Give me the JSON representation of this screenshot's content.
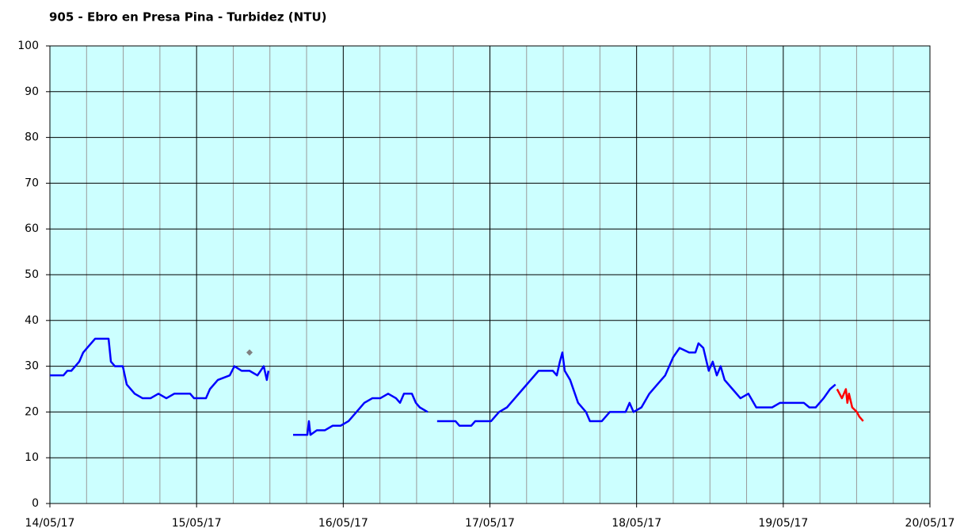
{
  "chart_data": {
    "type": "line",
    "title": "905 - Ebro en Presa Pina - Turbidez (NTU)",
    "xlim": [
      0,
      6
    ],
    "xticks": [
      {
        "value": 0,
        "label": "14/05/17"
      },
      {
        "value": 1,
        "label": "15/05/17"
      },
      {
        "value": 2,
        "label": "16/05/17"
      },
      {
        "value": 3,
        "label": "17/05/17"
      },
      {
        "value": 4,
        "label": "18/05/17"
      },
      {
        "value": 5,
        "label": "19/05/17"
      },
      {
        "value": 6,
        "label": "20/05/17"
      }
    ],
    "ylim": [
      0,
      100
    ],
    "yticks": [
      0,
      10,
      20,
      30,
      40,
      50,
      60,
      70,
      80,
      90,
      100
    ],
    "grid": true,
    "background": "#ccffff",
    "series": [
      {
        "color": "#0000ff",
        "x": [
          0,
          0.092,
          0.119,
          0.146,
          0.173,
          0.2,
          0.227,
          0.254,
          0.281,
          0.308,
          0.362,
          0.4,
          0.416,
          0.443,
          0.497,
          0.524,
          0.578,
          0.632,
          0.686,
          0.74,
          0.794,
          0.848,
          0.956,
          0.983,
          1.064,
          1.091,
          1.145,
          1.226,
          1.258,
          1.307,
          1.361,
          1.415,
          1.458,
          1.479,
          1.49,
          null,
          1.658,
          1.755,
          1.766,
          1.776,
          1.82,
          1.874,
          1.928,
          1.982,
          2.036,
          2.09,
          2.144,
          2.198,
          2.252,
          2.306,
          2.36,
          2.387,
          2.414,
          2.441,
          2.468,
          2.495,
          2.522,
          2.576,
          null,
          2.64,
          2.765,
          2.792,
          2.873,
          2.9,
          3.008,
          3.062,
          3.116,
          3.17,
          3.224,
          3.278,
          3.332,
          3.386,
          3.429,
          3.456,
          3.477,
          3.494,
          3.51,
          3.547,
          3.601,
          3.655,
          3.682,
          3.763,
          3.817,
          3.871,
          3.925,
          3.952,
          3.979,
          4.033,
          4.087,
          4.141,
          4.195,
          4.25,
          4.293,
          4.358,
          4.401,
          4.422,
          4.455,
          4.492,
          4.519,
          4.547,
          4.573,
          4.6,
          4.654,
          4.708,
          4.762,
          4.816,
          4.87,
          4.924,
          4.978,
          5.032,
          5.086,
          5.14,
          5.178,
          5.221,
          5.275,
          5.319,
          5.356
        ],
        "values": [
          28,
          28,
          29,
          29,
          30,
          31,
          33,
          34,
          35,
          36,
          36,
          36,
          31,
          30,
          30,
          26,
          24,
          23,
          23,
          24,
          23,
          24,
          24,
          23,
          23,
          25,
          27,
          28,
          30,
          29,
          29,
          28,
          30,
          27,
          29,
          null,
          15,
          15,
          18,
          15,
          16,
          16,
          17,
          17,
          18,
          20,
          22,
          23,
          23,
          24,
          23,
          22,
          24,
          24,
          24,
          22,
          21,
          20,
          null,
          18,
          18,
          17,
          17,
          18,
          18,
          20,
          21,
          23,
          25,
          27,
          29,
          29,
          29,
          28,
          31,
          33,
          29,
          27,
          22,
          20,
          18,
          18,
          20,
          20,
          20,
          22,
          20,
          21,
          24,
          26,
          28,
          32,
          34,
          33,
          33,
          35,
          34,
          29,
          31,
          28,
          30,
          27,
          25,
          23,
          24,
          21,
          21,
          21,
          22,
          22,
          22,
          22,
          21,
          21,
          23,
          25,
          26
        ]
      },
      {
        "color": "#ff0000",
        "x": [
          5.367,
          5.4,
          5.427,
          5.437,
          5.448,
          5.47,
          5.502,
          5.518,
          5.545
        ],
        "values": [
          25,
          23,
          25,
          22,
          24,
          21,
          20,
          19,
          18
        ]
      },
      {
        "color": "#808080",
        "marker": "diamond",
        "x": [
          1.361
        ],
        "values": [
          33
        ]
      }
    ]
  }
}
